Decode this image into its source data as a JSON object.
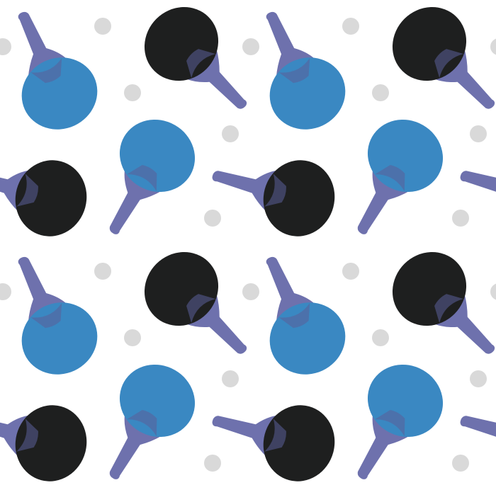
{
  "pattern": {
    "background": "#ffffff",
    "colors": {
      "blue_face": "#3a88c2",
      "black_face": "#1e1f1f",
      "handle": "#6e71ad",
      "handle_shadow": "#5b5f99",
      "ball": "#d9d9d9"
    },
    "motifs": [
      "blue-paddle",
      "black-paddle",
      "ping-pong-ball"
    ]
  }
}
